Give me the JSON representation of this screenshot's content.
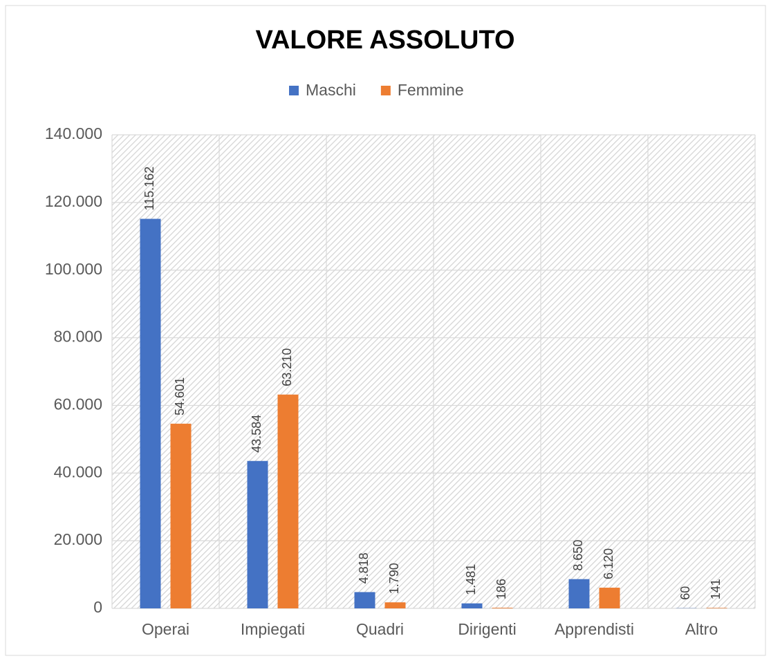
{
  "chart_data": {
    "type": "bar",
    "title": "VALORE ASSOLUTO",
    "categories": [
      "Operai",
      "Impiegati",
      "Quadri",
      "Dirigenti",
      "Apprendisti",
      "Altro"
    ],
    "series": [
      {
        "name": "Maschi",
        "color": "#4472c4",
        "values": [
          115162,
          43584,
          4818,
          1481,
          8650,
          60
        ],
        "value_labels": [
          "115.162",
          "43.584",
          "4.818",
          "1.481",
          "8.650",
          "60"
        ]
      },
      {
        "name": "Femmine",
        "color": "#ed7d31",
        "values": [
          54601,
          63210,
          1790,
          186,
          6120,
          141
        ],
        "value_labels": [
          "54.601",
          "63.210",
          "1.790",
          "186",
          "6.120",
          "141"
        ]
      }
    ],
    "ylim": [
      0,
      140000
    ],
    "yticks": [
      0,
      {
        "value": 20000,
        "label": "20.000"
      },
      {
        "value": 40000,
        "label": "40.000"
      },
      {
        "value": 60000,
        "label": "60.000"
      },
      {
        "value": 80000,
        "label": "80.000"
      },
      {
        "value": 100000,
        "label": "100.000"
      },
      {
        "value": 120000,
        "label": "120.000"
      },
      {
        "value": 140000,
        "label": "140.000"
      }
    ],
    "grid": true,
    "legend": "top"
  }
}
